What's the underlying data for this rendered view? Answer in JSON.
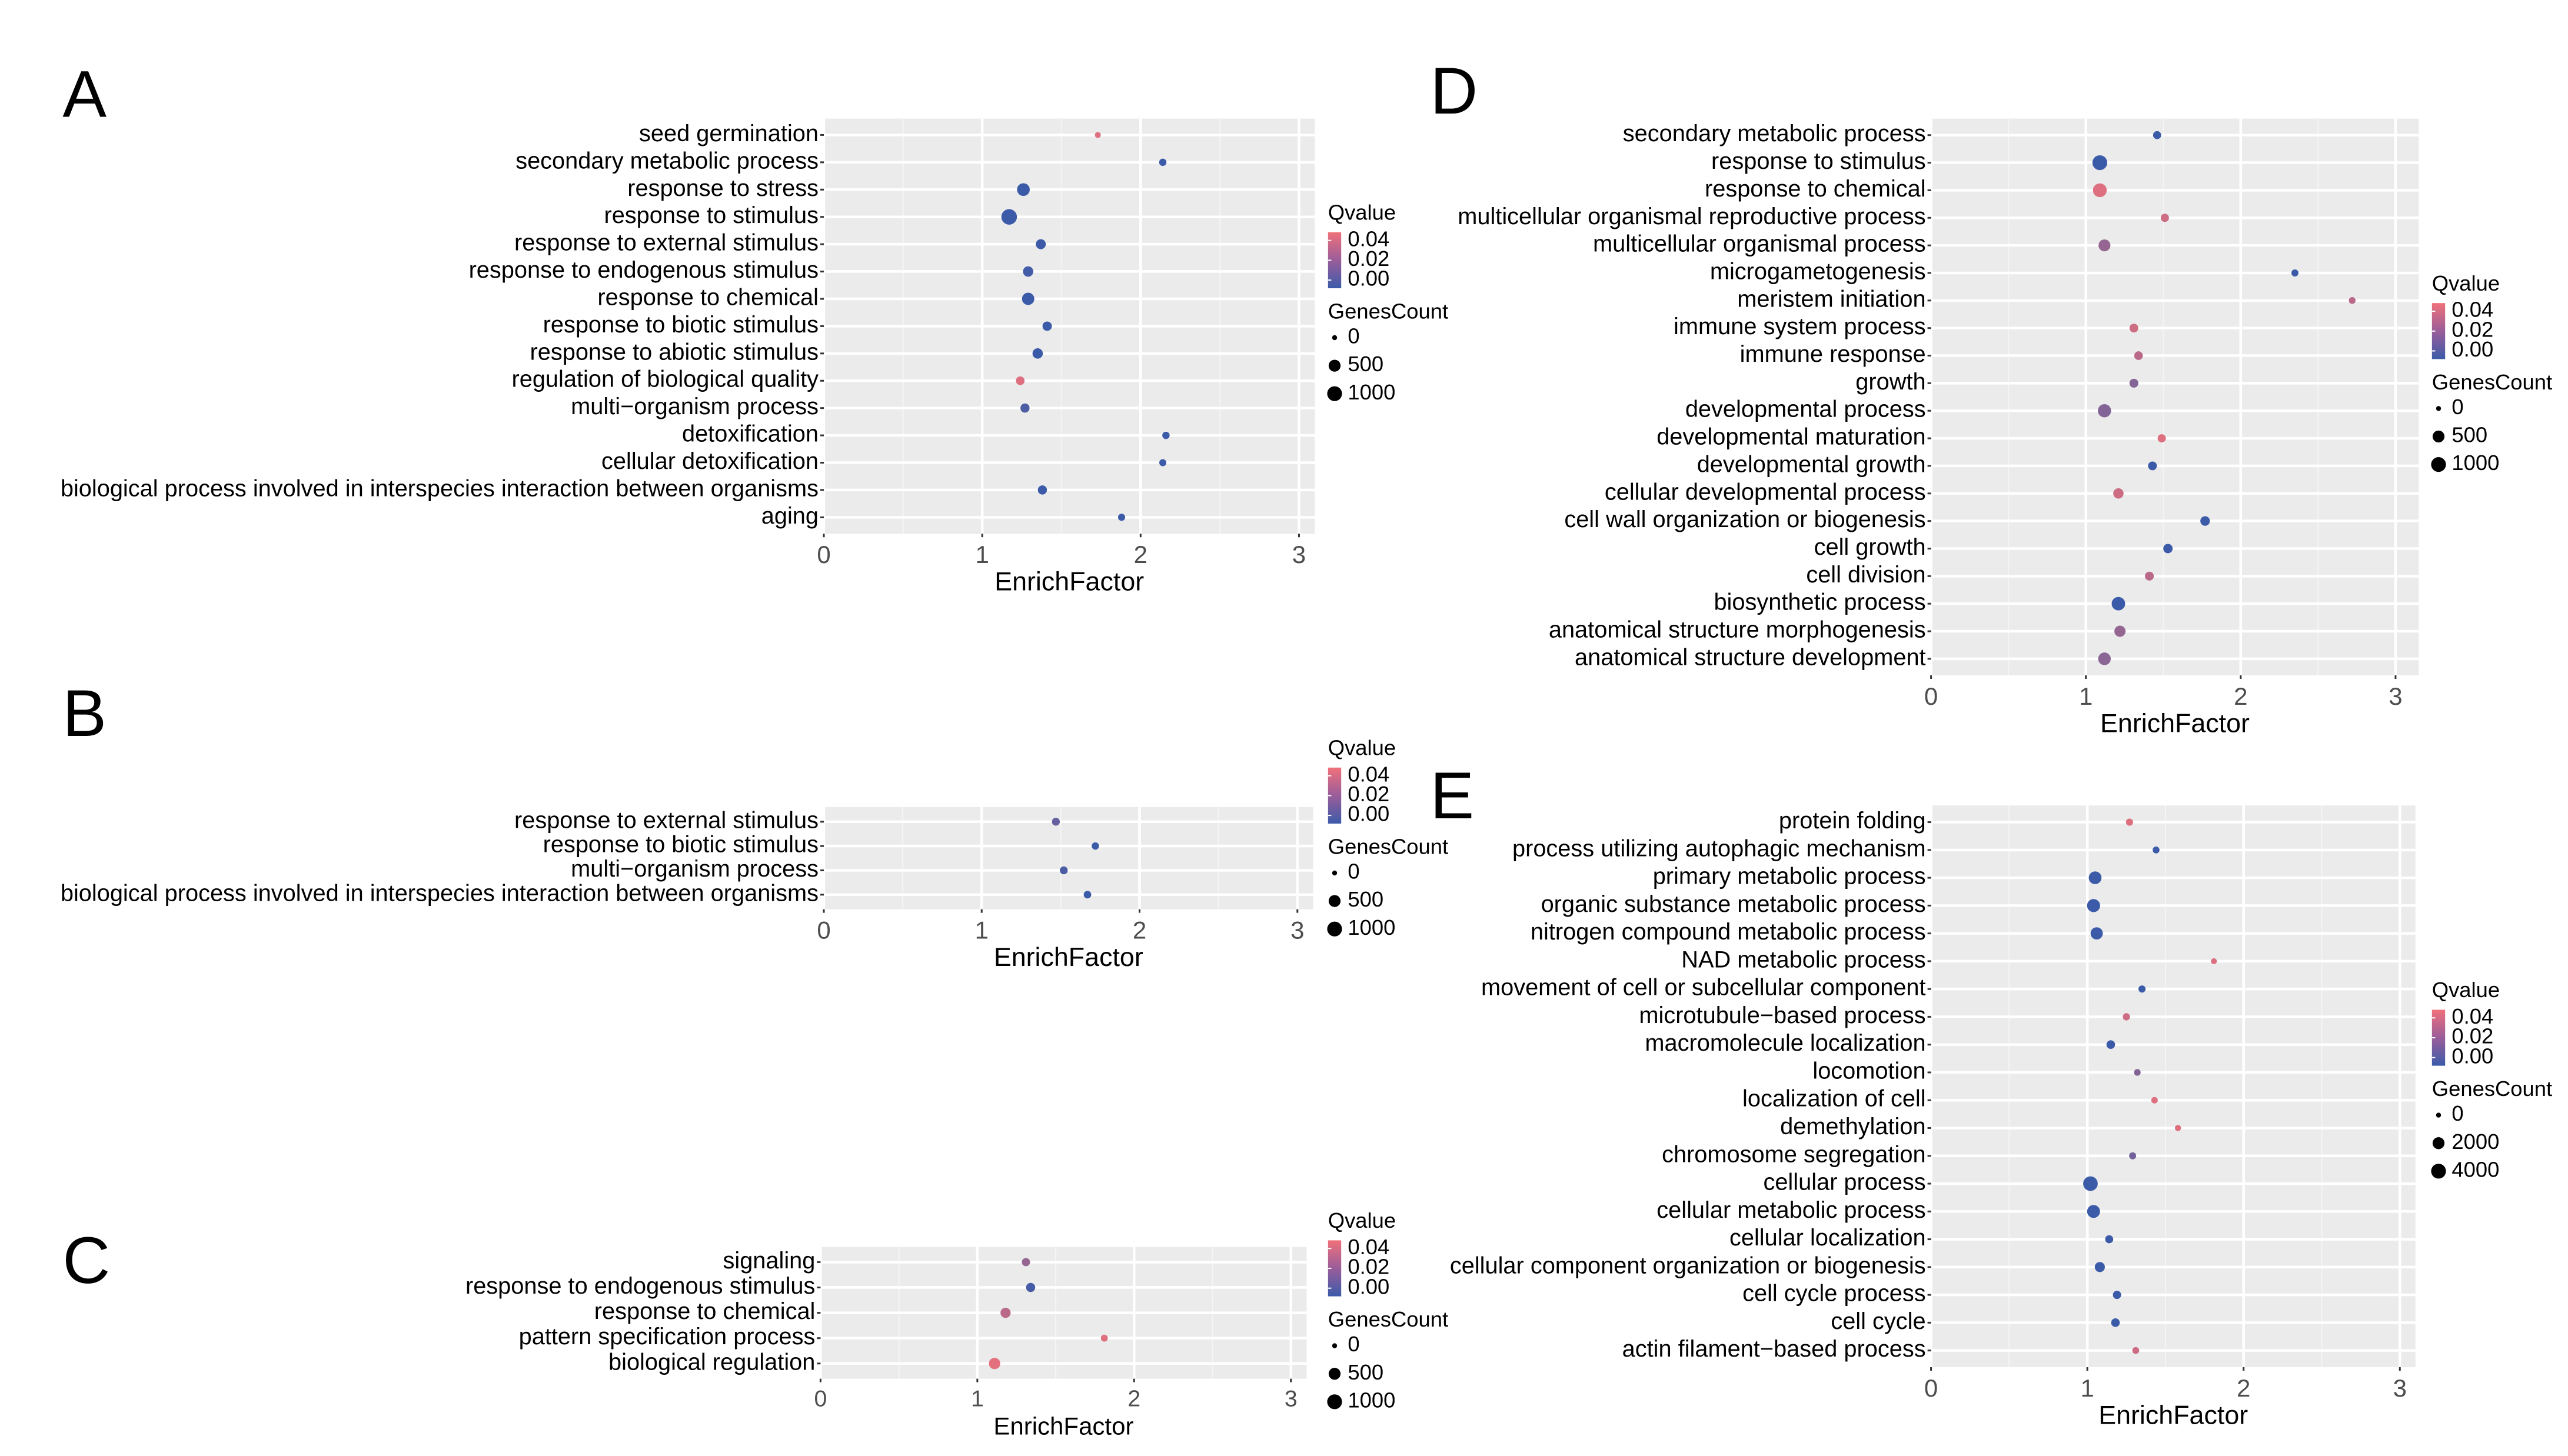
{
  "chart_data": [
    {
      "panel": "A",
      "type": "scatter",
      "xlabel": "EnrichFactor",
      "xlim": [
        0,
        3.1
      ],
      "xticks": [
        0,
        1,
        2,
        3
      ],
      "categories": [
        "seed germination",
        "secondary metabolic process",
        "response to stress",
        "response to stimulus",
        "response to external stimulus",
        "response to endogenous stimulus",
        "response to chemical",
        "response to biotic stimulus",
        "response to abiotic stimulus",
        "regulation of biological quality",
        "multi−organism process",
        "detoxification",
        "cellular detoxification",
        "biological process involved in interspecies interaction between organisms",
        "aging"
      ],
      "points": [
        {
          "y": "seed germination",
          "x": 1.73,
          "genes": 10,
          "qvalue": 0.045
        },
        {
          "y": "secondary metabolic process",
          "x": 2.14,
          "genes": 60,
          "qvalue": 0.0
        },
        {
          "y": "response to stress",
          "x": 1.26,
          "genes": 620,
          "qvalue": 0.0
        },
        {
          "y": "response to stimulus",
          "x": 1.17,
          "genes": 1150,
          "qvalue": 0.0
        },
        {
          "y": "response to external stimulus",
          "x": 1.37,
          "genes": 260,
          "qvalue": 0.0
        },
        {
          "y": "response to endogenous stimulus",
          "x": 1.29,
          "genes": 300,
          "qvalue": 0.002
        },
        {
          "y": "response to chemical",
          "x": 1.29,
          "genes": 560,
          "qvalue": 0.0
        },
        {
          "y": "response to biotic stimulus",
          "x": 1.41,
          "genes": 200,
          "qvalue": 0.0
        },
        {
          "y": "response to abiotic stimulus",
          "x": 1.35,
          "genes": 300,
          "qvalue": 0.0
        },
        {
          "y": "regulation of biological quality",
          "x": 1.24,
          "genes": 140,
          "qvalue": 0.045
        },
        {
          "y": "multi−organism process",
          "x": 1.27,
          "genes": 180,
          "qvalue": 0.005
        },
        {
          "y": "detoxification",
          "x": 2.16,
          "genes": 60,
          "qvalue": 0.0
        },
        {
          "y": "cellular detoxification",
          "x": 2.14,
          "genes": 45,
          "qvalue": 0.0
        },
        {
          "y": "biological process involved in interspecies interaction between organisms",
          "x": 1.38,
          "genes": 180,
          "qvalue": 0.0
        },
        {
          "y": "aging",
          "x": 1.88,
          "genes": 50,
          "qvalue": 0.0
        }
      ],
      "legend": {
        "color_title": "Qvalue",
        "color_ticks": [
          "0.04",
          "0.02",
          "0.00"
        ],
        "size_title": "GenesCount",
        "size_ticks": [
          "0",
          "500",
          "1000"
        ],
        "size_values": [
          0,
          500,
          1000
        ]
      }
    },
    {
      "panel": "B",
      "type": "scatter",
      "xlabel": "EnrichFactor",
      "xlim": [
        0,
        3.1
      ],
      "xticks": [
        0,
        1,
        2,
        3
      ],
      "categories": [
        "response to external stimulus",
        "response to biotic stimulus",
        "multi−organism process",
        "biological process involved in interspecies interaction between organisms"
      ],
      "points": [
        {
          "y": "response to external stimulus",
          "x": 1.47,
          "genes": 90,
          "qvalue": 0.012
        },
        {
          "y": "response to biotic stimulus",
          "x": 1.72,
          "genes": 60,
          "qvalue": 0.0
        },
        {
          "y": "multi−organism process",
          "x": 1.52,
          "genes": 90,
          "qvalue": 0.005
        },
        {
          "y": "biological process involved in interspecies interaction between organisms",
          "x": 1.67,
          "genes": 70,
          "qvalue": 0.0
        }
      ],
      "legend": {
        "color_title": "Qvalue",
        "color_ticks": [
          "0.04",
          "0.02",
          "0.00"
        ],
        "size_title": "GenesCount",
        "size_ticks": [
          "0",
          "500",
          "1000"
        ],
        "size_values": [
          0,
          500,
          1000
        ]
      }
    },
    {
      "panel": "C",
      "type": "scatter",
      "xlabel": "EnrichFactor",
      "xlim": [
        0,
        3.1
      ],
      "xticks": [
        0,
        1,
        2,
        3
      ],
      "categories": [
        "signaling",
        "response to endogenous stimulus",
        "response to chemical",
        "pattern specification process",
        "biological regulation"
      ],
      "points": [
        {
          "y": "signaling",
          "x": 1.31,
          "genes": 110,
          "qvalue": 0.025
        },
        {
          "y": "response to endogenous stimulus",
          "x": 1.34,
          "genes": 180,
          "qvalue": 0.003
        },
        {
          "y": "response to chemical",
          "x": 1.18,
          "genes": 280,
          "qvalue": 0.035
        },
        {
          "y": "pattern specification process",
          "x": 1.81,
          "genes": 40,
          "qvalue": 0.045
        },
        {
          "y": "biological regulation",
          "x": 1.11,
          "genes": 420,
          "qvalue": 0.047
        }
      ],
      "legend": {
        "color_title": "Qvalue",
        "color_ticks": [
          "0.04",
          "0.02",
          "0.00"
        ],
        "size_title": "GenesCount",
        "size_ticks": [
          "0",
          "500",
          "1000"
        ],
        "size_values": [
          0,
          500,
          1000
        ]
      }
    },
    {
      "panel": "D",
      "type": "scatter",
      "xlabel": "EnrichFactor",
      "xlim": [
        0,
        3.15
      ],
      "xticks": [
        0,
        1,
        2,
        3
      ],
      "categories": [
        "secondary metabolic process",
        "response to stimulus",
        "response to chemical",
        "multicellular organismal reproductive process",
        "multicellular organismal process",
        "microgametogenesis",
        "meristem initiation",
        "immune system process",
        "immune response",
        "growth",
        "developmental process",
        "developmental maturation",
        "developmental growth",
        "cellular developmental process",
        "cell wall organization or biogenesis",
        "cell growth",
        "cell division",
        "biosynthetic process",
        "anatomical structure morphogenesis",
        "anatomical structure development"
      ],
      "points": [
        {
          "y": "secondary metabolic process",
          "x": 1.46,
          "genes": 100,
          "qvalue": 0.0
        },
        {
          "y": "response to stimulus",
          "x": 1.09,
          "genes": 1000,
          "qvalue": 0.0
        },
        {
          "y": "response to chemical",
          "x": 1.09,
          "genes": 800,
          "qvalue": 0.045
        },
        {
          "y": "multicellular organismal reproductive process",
          "x": 1.51,
          "genes": 110,
          "qvalue": 0.04
        },
        {
          "y": "multicellular organismal process",
          "x": 1.12,
          "genes": 500,
          "qvalue": 0.025
        },
        {
          "y": "microgametogenesis",
          "x": 2.35,
          "genes": 45,
          "qvalue": 0.0
        },
        {
          "y": "meristem initiation",
          "x": 2.72,
          "genes": 35,
          "qvalue": 0.035
        },
        {
          "y": "immune system process",
          "x": 1.31,
          "genes": 150,
          "qvalue": 0.04
        },
        {
          "y": "immune response",
          "x": 1.34,
          "genes": 140,
          "qvalue": 0.035
        },
        {
          "y": "growth",
          "x": 1.31,
          "genes": 160,
          "qvalue": 0.02
        },
        {
          "y": "developmental process",
          "x": 1.12,
          "genes": 700,
          "qvalue": 0.02
        },
        {
          "y": "developmental maturation",
          "x": 1.49,
          "genes": 110,
          "qvalue": 0.045
        },
        {
          "y": "developmental growth",
          "x": 1.43,
          "genes": 150,
          "qvalue": 0.0
        },
        {
          "y": "cellular developmental process",
          "x": 1.21,
          "genes": 300,
          "qvalue": 0.04
        },
        {
          "y": "cell wall organization or biogenesis",
          "x": 1.77,
          "genes": 220,
          "qvalue": 0.0
        },
        {
          "y": "cell growth",
          "x": 1.53,
          "genes": 200,
          "qvalue": 0.0
        },
        {
          "y": "cell division",
          "x": 1.41,
          "genes": 160,
          "qvalue": 0.035
        },
        {
          "y": "biosynthetic process",
          "x": 1.21,
          "genes": 750,
          "qvalue": 0.0
        },
        {
          "y": "anatomical structure morphogenesis",
          "x": 1.22,
          "genes": 400,
          "qvalue": 0.025
        },
        {
          "y": "anatomical structure development",
          "x": 1.12,
          "genes": 600,
          "qvalue": 0.022
        }
      ],
      "legend": {
        "color_title": "Qvalue",
        "color_ticks": [
          "0.04",
          "0.02",
          "0.00"
        ],
        "size_title": "GenesCount",
        "size_ticks": [
          "0",
          "500",
          "1000"
        ],
        "size_values": [
          0,
          500,
          1000
        ]
      }
    },
    {
      "panel": "E",
      "type": "scatter",
      "xlabel": "EnrichFactor",
      "xlim": [
        0,
        3.1
      ],
      "xticks": [
        0,
        1,
        2,
        3
      ],
      "categories": [
        "protein folding",
        "process utilizing autophagic mechanism",
        "primary metabolic process",
        "organic substance metabolic process",
        "nitrogen compound metabolic process",
        "NAD metabolic process",
        "movement of cell or subcellular component",
        "microtubule−based process",
        "macromolecule localization",
        "locomotion",
        "localization of cell",
        "demethylation",
        "chromosome segregation",
        "cellular process",
        "cellular metabolic process",
        "cellular localization",
        "cellular component organization or biogenesis",
        "cell cycle process",
        "cell cycle",
        "actin filament−based process"
      ],
      "points": [
        {
          "y": "protein folding",
          "x": 1.27,
          "genes": 200,
          "qvalue": 0.045
        },
        {
          "y": "process utilizing autophagic mechanism",
          "x": 1.44,
          "genes": 150,
          "qvalue": 0.0
        },
        {
          "y": "primary metabolic process",
          "x": 1.05,
          "genes": 2500,
          "qvalue": 0.0
        },
        {
          "y": "organic substance metabolic process",
          "x": 1.04,
          "genes": 2700,
          "qvalue": 0.0
        },
        {
          "y": "nitrogen compound metabolic process",
          "x": 1.06,
          "genes": 2200,
          "qvalue": 0.0
        },
        {
          "y": "NAD metabolic process",
          "x": 1.81,
          "genes": 40,
          "qvalue": 0.045
        },
        {
          "y": "movement of cell or subcellular component",
          "x": 1.35,
          "genes": 200,
          "qvalue": 0.0
        },
        {
          "y": "microtubule−based process",
          "x": 1.25,
          "genes": 220,
          "qvalue": 0.04
        },
        {
          "y": "macromolecule localization",
          "x": 1.15,
          "genes": 550,
          "qvalue": 0.0
        },
        {
          "y": "locomotion",
          "x": 1.32,
          "genes": 120,
          "qvalue": 0.02
        },
        {
          "y": "localization of cell",
          "x": 1.43,
          "genes": 100,
          "qvalue": 0.045
        },
        {
          "y": "demethylation",
          "x": 1.58,
          "genes": 60,
          "qvalue": 0.045
        },
        {
          "y": "chromosome segregation",
          "x": 1.29,
          "genes": 180,
          "qvalue": 0.015
        },
        {
          "y": "cellular process",
          "x": 1.02,
          "genes": 3800,
          "qvalue": 0.0
        },
        {
          "y": "cellular metabolic process",
          "x": 1.04,
          "genes": 2600,
          "qvalue": 0.0
        },
        {
          "y": "cellular localization",
          "x": 1.14,
          "genes": 400,
          "qvalue": 0.0
        },
        {
          "y": "cellular component organization or biogenesis",
          "x": 1.08,
          "genes": 1100,
          "qvalue": 0.0
        },
        {
          "y": "cell cycle process",
          "x": 1.19,
          "genes": 450,
          "qvalue": 0.0
        },
        {
          "y": "cell cycle",
          "x": 1.18,
          "genes": 550,
          "qvalue": 0.0
        },
        {
          "y": "actin filament−based process",
          "x": 1.31,
          "genes": 150,
          "qvalue": 0.04
        }
      ],
      "legend": {
        "color_title": "Qvalue",
        "color_ticks": [
          "0.04",
          "0.02",
          "0.00"
        ],
        "size_title": "GenesCount",
        "size_ticks": [
          "0",
          "2000",
          "4000"
        ],
        "size_values": [
          0,
          2000,
          4000
        ]
      }
    }
  ],
  "colors": {
    "qvalue_low": "#3b5ba9",
    "qvalue_high": "#f0717a",
    "panel_background": "#ebebeb",
    "gridline": "#ffffff"
  }
}
